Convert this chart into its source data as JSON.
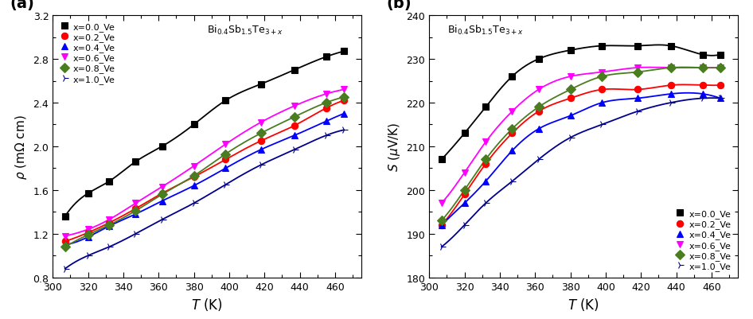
{
  "panel_a": {
    "title": "Bi$_{0.4}$Sb$_{1.5}$Te$_{3+x}$",
    "xlabel": "$T$ (K)",
    "ylabel": "$\\rho$ (m$\\Omega$ cm)",
    "xlim": [
      300,
      475
    ],
    "ylim": [
      0.8,
      3.2
    ],
    "xticks": [
      300,
      320,
      340,
      360,
      380,
      400,
      420,
      440,
      460
    ],
    "yticks": [
      0.8,
      1.2,
      1.6,
      2.0,
      2.4,
      2.8,
      3.2
    ],
    "series": [
      {
        "label": "x=0.0_Ve",
        "color": "#000000",
        "marker": "s",
        "markersize": 6,
        "T": [
          307,
          320,
          332,
          347,
          362,
          380,
          398,
          418,
          437,
          455,
          465
        ],
        "rho": [
          1.36,
          1.57,
          1.68,
          1.86,
          2.0,
          2.2,
          2.42,
          2.57,
          2.7,
          2.82,
          2.87
        ]
      },
      {
        "label": "x=0.2_Ve",
        "color": "#ff0000",
        "marker": "o",
        "markersize": 6,
        "T": [
          307,
          320,
          332,
          347,
          362,
          380,
          398,
          418,
          437,
          455,
          465
        ],
        "rho": [
          1.13,
          1.21,
          1.3,
          1.43,
          1.57,
          1.72,
          1.88,
          2.05,
          2.19,
          2.35,
          2.42
        ]
      },
      {
        "label": "x=0.4_Ve",
        "color": "#0000ff",
        "marker": "^",
        "markersize": 6,
        "T": [
          307,
          320,
          332,
          347,
          362,
          380,
          398,
          418,
          437,
          455,
          465
        ],
        "rho": [
          1.1,
          1.17,
          1.27,
          1.38,
          1.5,
          1.64,
          1.8,
          1.97,
          2.1,
          2.23,
          2.3
        ]
      },
      {
        "label": "x=0.6_Ve",
        "color": "#ff00ff",
        "marker": "v",
        "markersize": 6,
        "T": [
          307,
          320,
          332,
          347,
          362,
          380,
          398,
          418,
          437,
          455,
          465
        ],
        "rho": [
          1.18,
          1.24,
          1.33,
          1.48,
          1.63,
          1.82,
          2.02,
          2.22,
          2.37,
          2.48,
          2.52
        ]
      },
      {
        "label": "x=0.8_Ve",
        "color": "#4a7c20",
        "marker": "D",
        "markersize": 6,
        "T": [
          307,
          320,
          332,
          347,
          362,
          380,
          398,
          418,
          437,
          455,
          465
        ],
        "rho": [
          1.08,
          1.19,
          1.28,
          1.41,
          1.56,
          1.73,
          1.93,
          2.12,
          2.27,
          2.4,
          2.45
        ]
      },
      {
        "label": "x=1.0_Ve",
        "color": "#00008b",
        "marker": "4",
        "markersize": 7,
        "T": [
          307,
          320,
          332,
          347,
          362,
          380,
          398,
          418,
          437,
          455,
          465
        ],
        "rho": [
          0.88,
          1.0,
          1.08,
          1.2,
          1.33,
          1.48,
          1.65,
          1.83,
          1.97,
          2.1,
          2.15
        ]
      }
    ]
  },
  "panel_b": {
    "title": "Bi$_{0.4}$Sb$_{1.5}$Te$_{3+x}$",
    "xlabel": "$T$ (K)",
    "ylabel": "$S$ ($\\mu$V/K)",
    "xlim": [
      300,
      475
    ],
    "ylim": [
      180,
      240
    ],
    "xticks": [
      300,
      320,
      340,
      360,
      380,
      400,
      420,
      440,
      460
    ],
    "yticks": [
      180,
      190,
      200,
      210,
      220,
      230,
      240
    ],
    "series": [
      {
        "label": "x=0.0_Ve",
        "color": "#000000",
        "marker": "s",
        "markersize": 6,
        "T": [
          307,
          320,
          332,
          347,
          362,
          380,
          398,
          418,
          437,
          455,
          465
        ],
        "S": [
          207,
          213,
          219,
          226,
          230,
          232,
          233,
          233,
          233,
          231,
          231
        ]
      },
      {
        "label": "x=0.2_Ve",
        "color": "#ff0000",
        "marker": "o",
        "markersize": 6,
        "T": [
          307,
          320,
          332,
          347,
          362,
          380,
          398,
          418,
          437,
          455,
          465
        ],
        "S": [
          192,
          199,
          206,
          213,
          218,
          221,
          223,
          223,
          224,
          224,
          224
        ]
      },
      {
        "label": "x=0.4_Ve",
        "color": "#0000ff",
        "marker": "^",
        "markersize": 6,
        "T": [
          307,
          320,
          332,
          347,
          362,
          380,
          398,
          418,
          437,
          455,
          465
        ],
        "S": [
          192,
          197,
          202,
          209,
          214,
          217,
          220,
          221,
          222,
          222,
          221
        ]
      },
      {
        "label": "x=0.6_Ve",
        "color": "#ff00ff",
        "marker": "v",
        "markersize": 6,
        "T": [
          307,
          320,
          332,
          347,
          362,
          380,
          398,
          418,
          437,
          455,
          465
        ],
        "S": [
          197,
          204,
          211,
          218,
          223,
          226,
          227,
          228,
          228,
          228,
          228
        ]
      },
      {
        "label": "x=0.8_Ve",
        "color": "#4a7c20",
        "marker": "D",
        "markersize": 6,
        "T": [
          307,
          320,
          332,
          347,
          362,
          380,
          398,
          418,
          437,
          455,
          465
        ],
        "S": [
          193,
          200,
          207,
          214,
          219,
          223,
          226,
          227,
          228,
          228,
          228
        ]
      },
      {
        "label": "x=1.0_Ve",
        "color": "#00008b",
        "marker": "4",
        "markersize": 7,
        "T": [
          307,
          320,
          332,
          347,
          362,
          380,
          398,
          418,
          437,
          455,
          465
        ],
        "S": [
          187,
          192,
          197,
          202,
          207,
          212,
          215,
          218,
          220,
          221,
          221
        ]
      }
    ]
  }
}
